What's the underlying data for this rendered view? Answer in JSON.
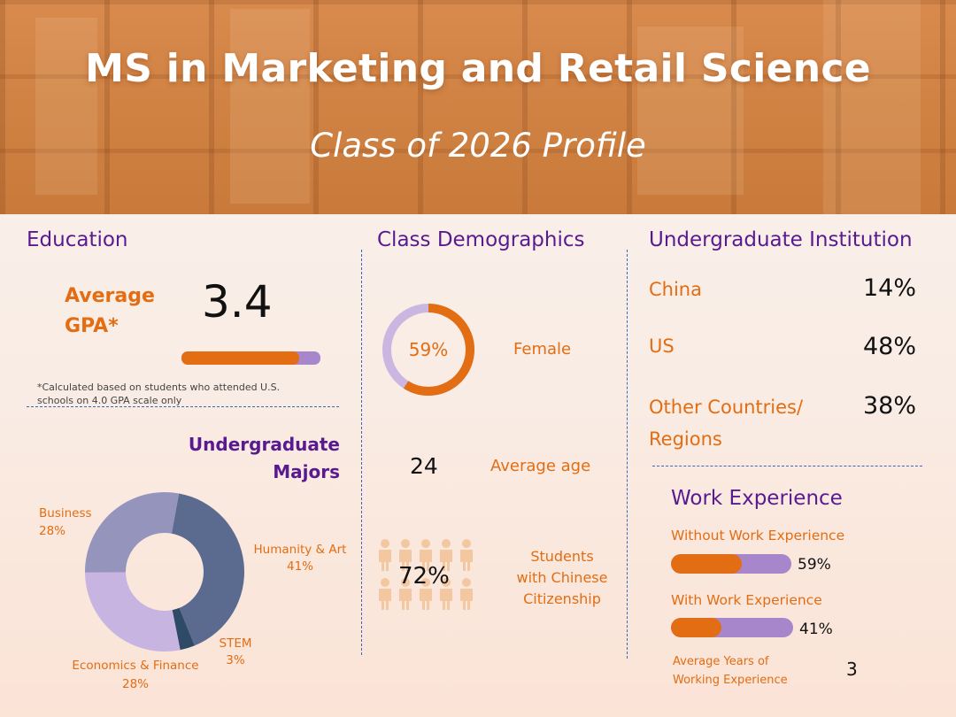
{
  "header": {
    "title": "MS in Marketing and Retail Science",
    "subtitle": "Class of 2026 Profile"
  },
  "education": {
    "heading": "Education",
    "gpa_label_line1": "Average",
    "gpa_label_line2": "GPA*",
    "gpa_value": "3.4",
    "gpa_fraction": 0.85,
    "footnote_line1": "*Calculated based on students who attended U.S.",
    "footnote_line2": "schools on 4.0 GPA scale only"
  },
  "majors": {
    "heading_line1": "Undergraduate",
    "heading_line2": "Majors",
    "chart_data": {
      "type": "pie",
      "categories": [
        "Humanity & Art",
        "STEM",
        "Economics & Finance",
        "Business"
      ],
      "values": [
        41,
        3,
        28,
        28
      ],
      "colors": [
        "#5b6b8f",
        "#2e4a66",
        "#c8b4e0",
        "#9494bd"
      ]
    },
    "labels": [
      {
        "name": "Humanity & Art",
        "pct": "41%"
      },
      {
        "name": "STEM",
        "pct": "3%"
      },
      {
        "name": "Economics & Finance",
        "pct": "28%"
      },
      {
        "name": "Business",
        "pct": "28%"
      }
    ]
  },
  "demographics": {
    "heading": "Class Demographics",
    "female_pct": "59%",
    "female_fraction": 0.59,
    "female_label": "Female",
    "age_value": "24",
    "age_label": "Average age",
    "citizenship_pct": "72%",
    "citizenship_label_line1": "Students",
    "citizenship_label_line2": "with Chinese",
    "citizenship_label_line3": "Citizenship"
  },
  "institution": {
    "heading": "Undergraduate Institution",
    "rows": [
      {
        "label": "China",
        "value": "14%"
      },
      {
        "label": "US",
        "value": "48%"
      },
      {
        "label_line1": "Other Countries/",
        "label_line2": "Regions",
        "value": "38%"
      }
    ]
  },
  "work": {
    "heading": "Work Experience",
    "without_label": "Without Work Experience",
    "without_pct": "59%",
    "without_fraction": 0.59,
    "with_label": "With Work Experience",
    "with_pct": "41%",
    "with_fraction": 0.41,
    "years_label_line1": "Average Years of",
    "years_label_line2": "Working Experience",
    "years_value": "3"
  },
  "colors": {
    "orange": "#e36d13",
    "purple": "#5a1a8f",
    "lavender": "#a886cc",
    "ring_track": "#cbb6e2"
  }
}
